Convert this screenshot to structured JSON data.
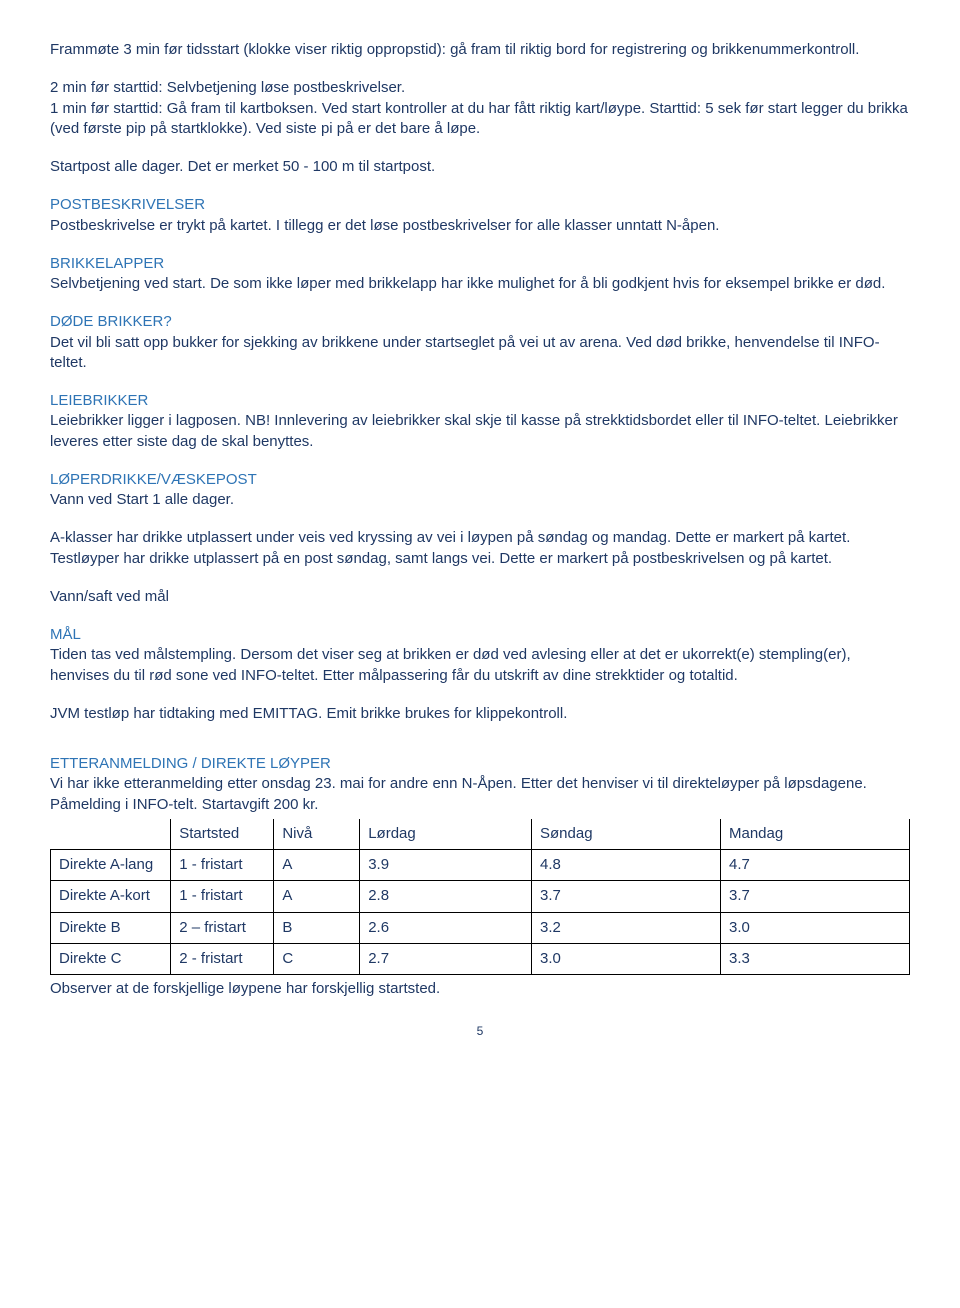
{
  "intro": {
    "p1": "Frammøte 3 min før tidsstart (klokke viser riktig oppropstid): gå fram til riktig bord for registrering  og brikkenummerkontroll.",
    "p2": "2 min før starttid: Selvbetjening løse postbeskrivelser.",
    "p3": "1 min før starttid: Gå fram til kartboksen. Ved start kontroller at du har fått riktig kart/løype. Starttid: 5 sek før start legger du brikka (ved første pip på startklokke). Ved siste pi på er det bare å løpe.",
    "p4": "Startpost alle dager. Det er merket 50 - 100 m til startpost."
  },
  "sections": [
    {
      "heading": "POSTBESKRIVELSER",
      "text": "Postbeskrivelse er trykt på kartet. I tillegg er det løse postbeskrivelser for alle klasser unntatt N-åpen."
    },
    {
      "heading": "BRIKKELAPPER",
      "text": "Selvbetjening ved start. De som ikke løper med brikkelapp har ikke mulighet for å bli godkjent hvis for eksempel brikke er død."
    },
    {
      "heading": "DØDE BRIKKER?",
      "text": "Det vil bli satt opp bukker for sjekking av brikkene under startseglet på vei ut av arena. Ved død brikke, henvendelse til INFO-teltet."
    },
    {
      "heading": "LEIEBRIKKER",
      "text": "Leiebrikker ligger i lagposen. NB! Innlevering av leiebrikker skal skje til kasse på strekktidsbordet eller til INFO-teltet. Leiebrikker leveres etter siste dag de skal benyttes."
    },
    {
      "heading": "LØPERDRIKKE/VÆSKEPOST",
      "text": "Vann ved Start 1 alle dager."
    }
  ],
  "drikke_p2": "A-klasser har drikke utplassert under veis ved kryssing av vei i løypen på søndag og mandag. Dette er markert på kartet. Testløyper har drikke utplassert på en post søndag, samt langs vei. Dette er markert på postbeskrivelsen og på kartet.",
  "drikke_p3": "Vann/saft ved mål",
  "mal": {
    "heading": "MÅL",
    "p1": "Tiden tas ved målstempling. Dersom det viser seg at brikken er død ved avlesing eller at det er ukorrekt(e) stempling(er), henvises du til rød sone ved INFO-teltet. Etter målpassering får du utskrift av dine strekktider og totaltid.",
    "p2": "JVM testløp har tidtaking med EMITTAG. Emit brikke brukes for klippekontroll."
  },
  "etter": {
    "heading": "ETTERANMELDING / DIREKTE LØYPER",
    "intro": "Vi har ikke etteranmelding etter onsdag 23. mai for andre enn N-Åpen. Etter det henviser vi til direkteløyper på løpsdagene. Påmelding i INFO-telt. Startavgift 200 kr.",
    "table": {
      "columns": [
        "",
        "Startsted",
        "Nivå",
        "Lørdag",
        "Søndag",
        "Mandag"
      ],
      "rows": [
        [
          "Direkte A-lang",
          "1 - fristart",
          "A",
          "3.9",
          "4.8",
          "4.7"
        ],
        [
          "Direkte A-kort",
          "1 - fristart",
          "A",
          "2.8",
          "3.7",
          "3.7"
        ],
        [
          "Direkte B",
          "2 – fristart",
          "B",
          "2.6",
          "3.2",
          "3.0"
        ],
        [
          "Direkte C",
          "2 - fristart",
          "C",
          "2.7",
          "3.0",
          "3.3"
        ]
      ],
      "col_widths": [
        "14%",
        "12%",
        "10%",
        "20%",
        "22%",
        "22%"
      ]
    },
    "footer": "Observer at de forskjellige løypene har forskjellig startsted."
  },
  "page_number": "5"
}
